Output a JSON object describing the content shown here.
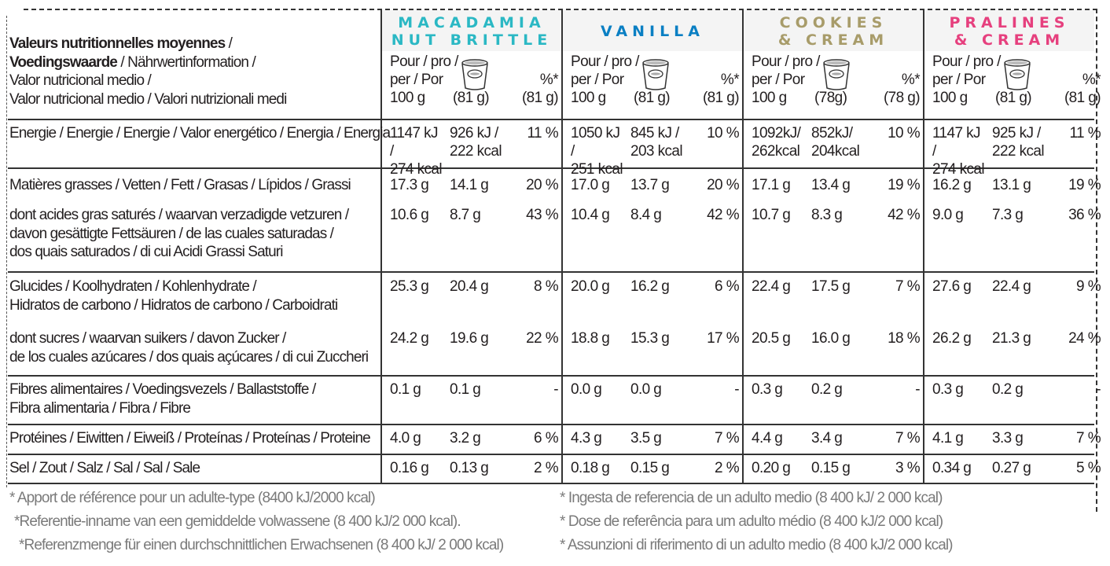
{
  "table_title": {
    "line1_bold": "Valeurs nutritionnelles moyennes",
    "line1_rest": " /",
    "line2_bold": "Voedingswaarde",
    "line2_rest": " / Nährwertinformation /",
    "line3": "Valor nutricional medio /",
    "line4": "Valor nutricional medio / Valori nutrizionali medi"
  },
  "products": [
    {
      "name_line1": "MACADAMIA",
      "name_line2": "NUT BRITTLE",
      "color": "#2bb8c4",
      "per100": "Pour / pro /",
      "per100b": "per / Por",
      "per100c": "100 g",
      "portion": "(81 g)",
      "pct_top": "%*",
      "pct_portion": "(81 g)",
      "cup_icon": "ice-cream-cup-icon"
    },
    {
      "name_line1": "VANILLA",
      "name_line2": "",
      "color": "#0a7fc3",
      "per100": "Pour / pro /",
      "per100b": "per / Por",
      "per100c": "100 g",
      "portion": "(81 g)",
      "pct_top": "%*",
      "pct_portion": "(81 g)",
      "cup_icon": "ice-cream-cup-icon"
    },
    {
      "name_line1": "COOKIES",
      "name_line2": "& CREAM",
      "color": "#a89c6a",
      "per100": "Pour / pro /",
      "per100b": "per / Por",
      "per100c": "100 g",
      "portion": "(78g)",
      "pct_top": "%*",
      "pct_portion": "(78 g)",
      "cup_icon": "ice-cream-cup-icon"
    },
    {
      "name_line1": "PRALINES",
      "name_line2": "& CREAM",
      "color": "#e6407e",
      "per100": "Pour / pro /",
      "per100b": "per / Por",
      "per100c": "100 g",
      "portion": "(81 g)",
      "pct_top": "%*",
      "pct_portion": "(81 g)",
      "cup_icon": "ice-cream-cup-icon"
    }
  ],
  "rows": [
    {
      "label": [
        "Energie / Energie / Energie / Valor energético / Energia / Energia"
      ],
      "values": [
        [
          "1147 kJ /\n274 kcal",
          "926 kJ /\n222 kcal",
          "11 %"
        ],
        [
          "1050 kJ /\n251 kcal",
          "845 kJ /\n203 kcal",
          "10 %"
        ],
        [
          "1092kJ/\n262kcal",
          "852kJ/\n204kcal",
          "10 %"
        ],
        [
          "1147 kJ /\n274 kcal",
          "925 kJ /\n222 kcal",
          "11 %"
        ]
      ]
    },
    {
      "label": [
        "Matières grasses / Vetten / Fett / Grasas / Lípidos / Grassi"
      ],
      "values": [
        [
          "17.3 g",
          "14.1 g",
          "20 %"
        ],
        [
          "17.0 g",
          "13.7 g",
          "20 %"
        ],
        [
          "17.1 g",
          "13.4 g",
          "19 %"
        ],
        [
          "16.2 g",
          "13.1 g",
          "19 %"
        ]
      ]
    },
    {
      "label": [
        "dont acides gras saturés / waarvan verzadigde vetzuren /",
        "davon gesättigte Fettsäuren / de las cuales saturadas /",
        "dos quais saturados / di cui Acidi Grassi Saturi"
      ],
      "values": [
        [
          "10.6 g",
          "8.7 g",
          "43 %"
        ],
        [
          "10.4 g",
          "8.4 g",
          "42 %"
        ],
        [
          "10.7 g",
          "8.3 g",
          "42 %"
        ],
        [
          "9.0 g",
          "7.3 g",
          "36 %"
        ]
      ]
    },
    {
      "label": [
        "Glucides / Koolhydraten / Kohlenhydrate /",
        "Hidratos de carbono / Hidratos de carbono / Carboidrati"
      ],
      "values": [
        [
          "25.3 g",
          "20.4 g",
          "8 %"
        ],
        [
          "20.0 g",
          "16.2 g",
          "6 %"
        ],
        [
          "22.4 g",
          "17.5 g",
          "7 %"
        ],
        [
          "27.6 g",
          "22.4 g",
          "9 %"
        ]
      ]
    },
    {
      "label": [
        "dont sucres / waarvan suikers / davon Zucker /",
        "de los cuales azúcares / dos quais açúcares / di cui Zuccheri"
      ],
      "values": [
        [
          "24.2 g",
          "19.6 g",
          "22 %"
        ],
        [
          "18.8 g",
          "15.3 g",
          "17 %"
        ],
        [
          "20.5 g",
          "16.0 g",
          "18 %"
        ],
        [
          "26.2 g",
          "21.3 g",
          "24 %"
        ]
      ]
    },
    {
      "label": [
        "Fibres alimentaires / Voedingsvezels / Ballaststoffe /",
        "Fibra alimentaria / Fibra / Fibre"
      ],
      "values": [
        [
          "0.1 g",
          "0.1 g",
          "-"
        ],
        [
          "0.0 g",
          "0.0 g",
          "-"
        ],
        [
          "0.3 g",
          "0.2 g",
          "-"
        ],
        [
          "0.3 g",
          "0.2 g",
          "-"
        ]
      ]
    },
    {
      "label": [
        "Protéines / Eiwitten / Eiweiß / Proteínas / Proteínas / Proteine"
      ],
      "values": [
        [
          "4.0 g",
          "3.2 g",
          "6 %"
        ],
        [
          "4.3 g",
          "3.5 g",
          "7 %"
        ],
        [
          "4.4 g",
          "3.4 g",
          "7 %"
        ],
        [
          "4.1 g",
          "3.3 g",
          "7 %"
        ]
      ]
    },
    {
      "label": [
        "Sel / Zout / Salz / Sal / Sal / Sale"
      ],
      "values": [
        [
          "0.16 g",
          "0.13 g",
          "2 %"
        ],
        [
          "0.18 g",
          "0.15 g",
          "2 %"
        ],
        [
          "0.20 g",
          "0.15 g",
          "3 %"
        ],
        [
          "0.34 g",
          "0.27 g",
          "5 %"
        ]
      ]
    }
  ],
  "footnotes": {
    "left": [
      "* Apport de référence pour un adulte-type (8400 kJ/2000 kcal)",
      "*Referentie-inname van een gemiddelde volwassene (8 400 kJ/2 000 kcal).",
      "*Referenzmenge für einen durchschnittlichen Erwachsenen (8 400 kJ/ 2 000 kcal)"
    ],
    "right": [
      "* Ingesta de referencia de un adulto medio (8 400 kJ/ 2 000 kcal)",
      "* Dose de referência para um adulto médio (8 400 kJ/2 000 kcal)",
      "* Assunzioni di riferimento di un adulto medio (8 400 kJ/2 000 kcal)"
    ]
  }
}
